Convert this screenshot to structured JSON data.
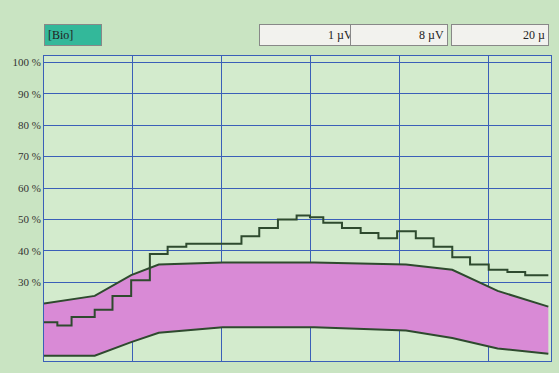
{
  "chart_data": {
    "type": "line",
    "annotations": [
      "[Bio]",
      "1 µV",
      "8 µV",
      "20 µ"
    ],
    "xlim": [
      0,
      5.7
    ],
    "xticks": [
      1,
      2,
      3,
      4,
      5
    ],
    "ylim": [
      5,
      102
    ],
    "yticks": [
      {
        "value": 30,
        "label": "30 %"
      },
      {
        "value": 40,
        "label": "40 %"
      },
      {
        "value": 50,
        "label": "50 %"
      },
      {
        "value": 60,
        "label": "60 %"
      },
      {
        "value": 70,
        "label": "70 %"
      },
      {
        "value": 80,
        "label": "80 %"
      },
      {
        "value": 90,
        "label": "90 %"
      },
      {
        "value": 100,
        "label": "100 %"
      }
    ],
    "grid": true,
    "tick_labels": "y",
    "band": {
      "color": "#d98ad6",
      "x": [
        0,
        0.57,
        0.98,
        1.29,
        2.01,
        3.04,
        4.07,
        4.59,
        5.1,
        5.67
      ],
      "upper": [
        23.3,
        25.7,
        32.3,
        35.7,
        36.3,
        36.3,
        35.7,
        34,
        27.3,
        22.3
      ],
      "lower": [
        6.7,
        6.7,
        11,
        14,
        15.7,
        15.7,
        14.7,
        12.3,
        9,
        7.3
      ]
    },
    "series": [
      {
        "color": "#2e4a2e",
        "x": [
          0,
          0.15,
          0.31,
          0.57,
          0.77,
          0.98,
          1.19,
          1.39,
          1.6,
          1.8,
          2.01,
          2.22,
          2.42,
          2.63,
          2.84,
          2.99,
          3.14,
          3.35,
          3.56,
          3.76,
          3.97,
          4.18,
          4.38,
          4.59,
          4.79,
          5.0,
          5.21,
          5.41,
          5.67
        ],
        "values": [
          17.3,
          16.3,
          19,
          21.3,
          25.7,
          30.7,
          39,
          41.3,
          42.3,
          42.3,
          42.3,
          44.7,
          47.3,
          50,
          51.3,
          50.7,
          49,
          47.3,
          45.7,
          44,
          46.3,
          44,
          41.3,
          38,
          35.7,
          34,
          33.3,
          32.3,
          32.3
        ]
      }
    ]
  }
}
